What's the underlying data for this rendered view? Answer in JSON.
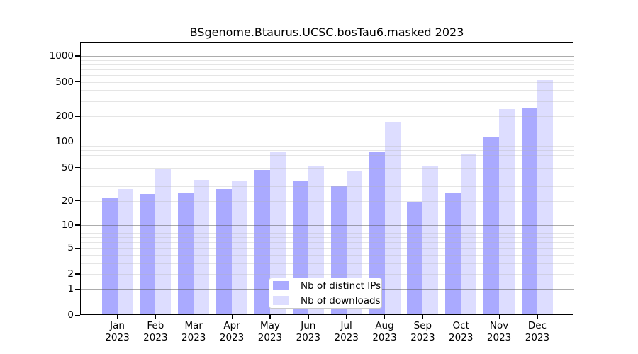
{
  "title": "BSgenome.Btaurus.UCSC.bosTau6.masked 2023",
  "chart_data": {
    "type": "bar",
    "title": "BSgenome.Btaurus.UCSC.bosTau6.masked 2023",
    "scale": "log1p (y = log10(1+value))",
    "categories": [
      "Jan",
      "Feb",
      "Mar",
      "Apr",
      "May",
      "Jun",
      "Jul",
      "Aug",
      "Sep",
      "Oct",
      "Nov",
      "Dec"
    ],
    "year": "2023",
    "series": [
      {
        "name": "Nb of distinct IPs",
        "color": "#aaaaff",
        "values": [
          22,
          24,
          25,
          28,
          47,
          35,
          30,
          76,
          19,
          25,
          114,
          251
        ]
      },
      {
        "name": "Nb of downloads",
        "color": "#ddddff",
        "values": [
          28,
          48,
          36,
          35,
          76,
          52,
          45,
          171,
          52,
          73,
          242,
          523
        ]
      }
    ],
    "y_ticks": [
      0,
      1,
      2,
      5,
      10,
      20,
      50,
      100,
      200,
      500,
      1000
    ],
    "ylim": [
      0,
      1500
    ],
    "xlabel": "",
    "ylabel": "",
    "grid": "horizontal log gridlines (major at powers of 10, minor at 2-9 multiples) drawn over bars",
    "legend_position": "inside bottom-center"
  },
  "legend": {
    "items": [
      {
        "label": "Nb of distinct IPs",
        "color": "#aaaaff"
      },
      {
        "label": "Nb of downloads",
        "color": "#ddddff"
      }
    ]
  }
}
